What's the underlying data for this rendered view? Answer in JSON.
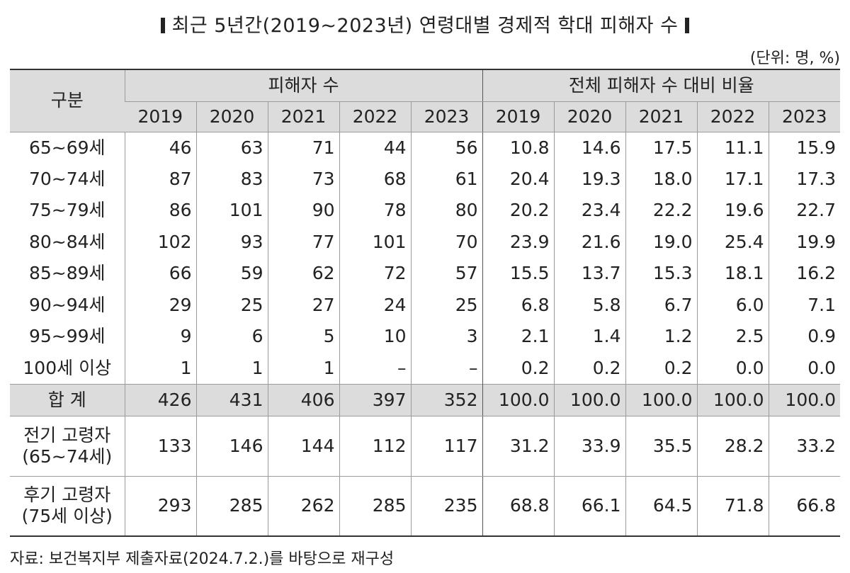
{
  "title": "최근 5년간(2019~2023년) 연령대별 경제적 학대 피해자 수",
  "unit": "(단위: 명, %)",
  "header": {
    "category": "구분",
    "group_count": "피해자 수",
    "group_ratio": "전체 피해자 수 대비 비율",
    "years": [
      "2019",
      "2020",
      "2021",
      "2022",
      "2023"
    ]
  },
  "rows": [
    {
      "label": "65~69세",
      "counts": [
        "46",
        "63",
        "71",
        "44",
        "56"
      ],
      "ratios": [
        "10.8",
        "14.6",
        "17.5",
        "11.1",
        "15.9"
      ]
    },
    {
      "label": "70~74세",
      "counts": [
        "87",
        "83",
        "73",
        "68",
        "61"
      ],
      "ratios": [
        "20.4",
        "19.3",
        "18.0",
        "17.1",
        "17.3"
      ]
    },
    {
      "label": "75~79세",
      "counts": [
        "86",
        "101",
        "90",
        "78",
        "80"
      ],
      "ratios": [
        "20.2",
        "23.4",
        "22.2",
        "19.6",
        "22.7"
      ]
    },
    {
      "label": "80~84세",
      "counts": [
        "102",
        "93",
        "77",
        "101",
        "70"
      ],
      "ratios": [
        "23.9",
        "21.6",
        "19.0",
        "25.4",
        "19.9"
      ]
    },
    {
      "label": "85~89세",
      "counts": [
        "66",
        "59",
        "62",
        "72",
        "57"
      ],
      "ratios": [
        "15.5",
        "13.7",
        "15.3",
        "18.1",
        "16.2"
      ]
    },
    {
      "label": "90~94세",
      "counts": [
        "29",
        "25",
        "27",
        "24",
        "25"
      ],
      "ratios": [
        "6.8",
        "5.8",
        "6.7",
        "6.0",
        "7.1"
      ]
    },
    {
      "label": "95~99세",
      "counts": [
        "9",
        "6",
        "5",
        "10",
        "3"
      ],
      "ratios": [
        "2.1",
        "1.4",
        "1.2",
        "2.5",
        "0.9"
      ]
    },
    {
      "label": "100세 이상",
      "counts": [
        "1",
        "1",
        "1",
        "–",
        "–"
      ],
      "ratios": [
        "0.2",
        "0.2",
        "0.2",
        "0.0",
        "0.0"
      ]
    }
  ],
  "total": {
    "label": "합 계",
    "counts": [
      "426",
      "431",
      "406",
      "397",
      "352"
    ],
    "ratios": [
      "100.0",
      "100.0",
      "100.0",
      "100.0",
      "100.0"
    ]
  },
  "early": {
    "label_line1": "전기 고령자",
    "label_line2": "(65~74세)",
    "counts": [
      "133",
      "146",
      "144",
      "112",
      "117"
    ],
    "ratios": [
      "31.2",
      "33.9",
      "35.5",
      "28.2",
      "33.2"
    ]
  },
  "late": {
    "label_line1": "후기 고령자",
    "label_line2": "(75세 이상)",
    "counts": [
      "293",
      "285",
      "262",
      "285",
      "235"
    ],
    "ratios": [
      "68.8",
      "66.1",
      "64.5",
      "71.8",
      "66.8"
    ]
  },
  "source": "자료: 보건복지부 제출자료(2024.7.2.)를 바탕으로 재구성"
}
